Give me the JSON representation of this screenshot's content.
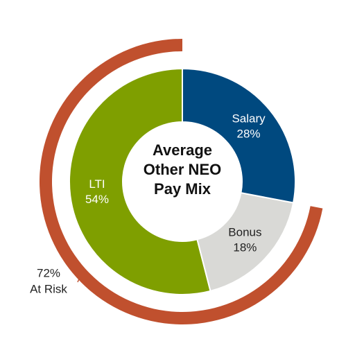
{
  "chart_data": {
    "type": "donut",
    "title": [
      "Average",
      "Other NEO",
      "Pay Mix"
    ],
    "categories": [
      "Salary",
      "Bonus",
      "LTI"
    ],
    "values": [
      28,
      18,
      54
    ],
    "value_labels": [
      "28%",
      "18%",
      "54%"
    ],
    "colors": [
      "#00497f",
      "#d9d9d6",
      "#7f9f00"
    ],
    "label_colors": [
      "#ffffff",
      "#222222",
      "#ffffff"
    ],
    "at_risk": {
      "value": 72,
      "value_label": "72%",
      "label": "At Risk",
      "color": "#c0502e"
    }
  }
}
